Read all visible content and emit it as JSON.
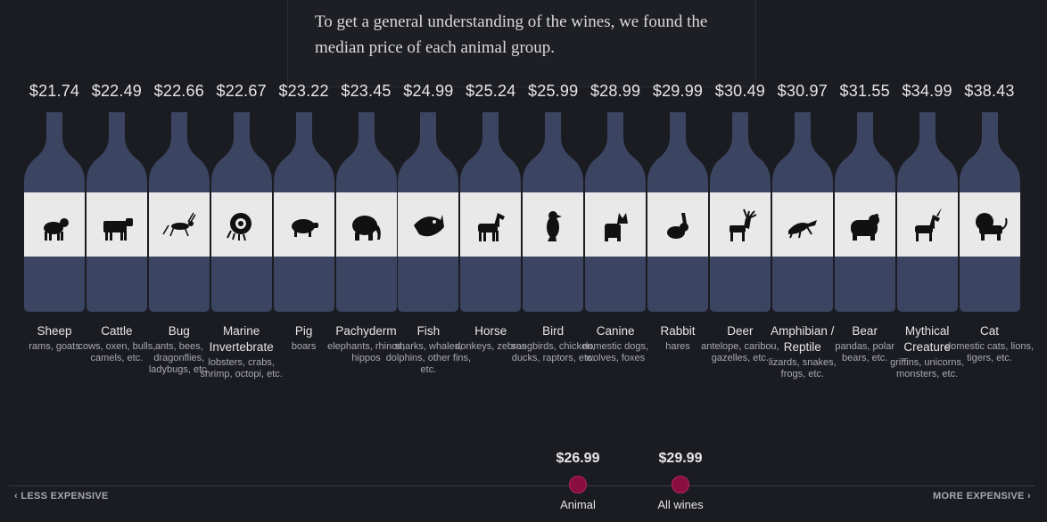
{
  "intro_text": "To get a general understanding of the wines, we found the median price of each animal group.",
  "chart_data": {
    "type": "bar",
    "categories": [
      "Sheep",
      "Cattle",
      "Bug",
      "Marine Invertebrate",
      "Pig",
      "Pachyderm",
      "Fish",
      "Horse",
      "Bird",
      "Canine",
      "Rabbit",
      "Deer",
      "Amphibian / Reptile",
      "Bear",
      "Mythical Creature",
      "Cat"
    ],
    "values": [
      21.74,
      22.49,
      22.66,
      22.67,
      23.22,
      23.45,
      24.99,
      25.24,
      25.99,
      28.99,
      29.99,
      30.49,
      30.97,
      31.55,
      34.99,
      38.43
    ],
    "title": "",
    "xlabel": "",
    "ylabel": ""
  },
  "groups": [
    {
      "price": "$21.74",
      "name": "Sheep",
      "desc": "rams, goats",
      "icon": "sheep-icon"
    },
    {
      "price": "$22.49",
      "name": "Cattle",
      "desc": "cows, oxen, bulls, camels, etc.",
      "icon": "cattle-icon"
    },
    {
      "price": "$22.66",
      "name": "Bug",
      "desc": "ants, bees, dragonflies, ladybugs, etc.",
      "icon": "bug-icon"
    },
    {
      "price": "$22.67",
      "name": "Marine Invertebrate",
      "desc": "lobsters, crabs, shrimp, octopi, etc.",
      "icon": "nautilus-icon"
    },
    {
      "price": "$23.22",
      "name": "Pig",
      "desc": "boars",
      "icon": "pig-icon"
    },
    {
      "price": "$23.45",
      "name": "Pachyderm",
      "desc": "elephants, rhinos, hippos",
      "icon": "elephant-icon"
    },
    {
      "price": "$24.99",
      "name": "Fish",
      "desc": "sharks, whales, dolphins, other fins, etc.",
      "icon": "fish-icon"
    },
    {
      "price": "$25.24",
      "name": "Horse",
      "desc": "donkeys, zebras",
      "icon": "horse-icon"
    },
    {
      "price": "$25.99",
      "name": "Bird",
      "desc": "songbirds, chicken, ducks, raptors, etc.",
      "icon": "bird-icon"
    },
    {
      "price": "$28.99",
      "name": "Canine",
      "desc": "domestic dogs, wolves, foxes",
      "icon": "canine-icon"
    },
    {
      "price": "$29.99",
      "name": "Rabbit",
      "desc": "hares",
      "icon": "rabbit-icon"
    },
    {
      "price": "$30.49",
      "name": "Deer",
      "desc": "antelope, caribou, gazelles, etc.",
      "icon": "deer-icon"
    },
    {
      "price": "$30.97",
      "name": "Amphibian / Reptile",
      "desc": "lizards, snakes, frogs, etc.",
      "icon": "lizard-icon"
    },
    {
      "price": "$31.55",
      "name": "Bear",
      "desc": "pandas, polar bears, etc.",
      "icon": "bear-icon"
    },
    {
      "price": "$34.99",
      "name": "Mythical Creature",
      "desc": "griffins, unicorns, monsters, etc.",
      "icon": "unicorn-icon"
    },
    {
      "price": "$38.43",
      "name": "Cat",
      "desc": "domestic cats, lions, tigers, etc.",
      "icon": "cat-icon"
    }
  ],
  "axis": {
    "less_label": "LESS EXPENSIVE",
    "more_label": "MORE EXPENSIVE",
    "less_arrow": "‹",
    "more_arrow": "›"
  },
  "markers": [
    {
      "price": "$26.99",
      "label": "Animal",
      "value": 26.99
    },
    {
      "price": "$29.99",
      "label": "All wines",
      "value": 29.99
    }
  ],
  "colors": {
    "background": "#1b1c21",
    "bottle": "#3b4461",
    "label": "#e9e9e9",
    "marker": "#8a0f3f"
  }
}
